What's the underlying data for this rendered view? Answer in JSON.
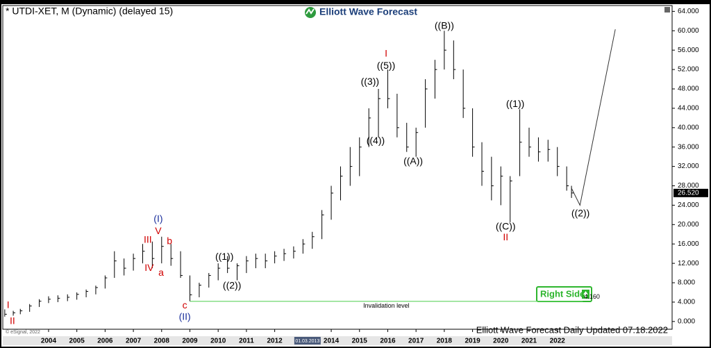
{
  "chart_data": {
    "type": "ohlc",
    "title": "* UTDI-XET, M (Dynamic) (delayed 15)",
    "logo": "Elliott Wave Forecast",
    "footer": "Elliott Wave Forecast Daily Updated 07.18.2022",
    "copyright": "© eSignal, 2022",
    "badge": "Right Side",
    "color": "#000000",
    "xlim": [
      2002.38,
      2026.06
    ],
    "xticks": [
      2004,
      2005,
      2006,
      2007,
      2008,
      2009,
      2010,
      2011,
      2012,
      2014,
      2015,
      2016,
      2017,
      2018,
      2019,
      2020,
      2021,
      2022
    ],
    "cursor_label": {
      "value": 2013.16,
      "label": "01.03.2013"
    },
    "ylim": [
      -1.6,
      65.2
    ],
    "yticks": [
      {
        "value": 0,
        "label": "0.000"
      },
      {
        "value": 4,
        "label": "4.000"
      },
      {
        "value": 8,
        "label": "8.000"
      },
      {
        "value": 12,
        "label": "12.000"
      },
      {
        "value": 16,
        "label": "16.000"
      },
      {
        "value": 20,
        "label": "20.000"
      },
      {
        "value": 24,
        "label": "24.000"
      },
      {
        "value": 28,
        "label": "28.000"
      },
      {
        "value": 32,
        "label": "32.000"
      },
      {
        "value": 36,
        "label": "36.000"
      },
      {
        "value": 40,
        "label": "40.000"
      },
      {
        "value": 44,
        "label": "44.000"
      },
      {
        "value": 48,
        "label": "48.000"
      },
      {
        "value": 52,
        "label": "52.000"
      },
      {
        "value": 56,
        "label": "56.000"
      },
      {
        "value": 60,
        "label": "60.000"
      },
      {
        "value": 64,
        "label": "64.000"
      }
    ],
    "x": [
      2002.45,
      2002.75,
      2003.0,
      2003.33,
      2003.67,
      2004.0,
      2004.33,
      2004.67,
      2005.0,
      2005.33,
      2005.67,
      2006.0,
      2006.33,
      2006.67,
      2007.0,
      2007.33,
      2007.67,
      2008.0,
      2008.33,
      2008.67,
      2009.0,
      2009.33,
      2009.67,
      2010.0,
      2010.33,
      2010.67,
      2011.0,
      2011.33,
      2011.67,
      2012.0,
      2012.33,
      2012.67,
      2013.0,
      2013.33,
      2013.67,
      2014.0,
      2014.33,
      2014.67,
      2015.0,
      2015.33,
      2015.67,
      2016.0,
      2016.33,
      2016.67,
      2017.0,
      2017.33,
      2017.67,
      2018.0,
      2018.33,
      2018.67,
      2019.0,
      2019.33,
      2019.67,
      2020.0,
      2020.33,
      2020.67,
      2021.0,
      2021.33,
      2021.67,
      2022.0,
      2022.33,
      2022.5
    ],
    "low": [
      1.0,
      1.2,
      1.5,
      2.0,
      3.0,
      3.8,
      4.0,
      4.2,
      4.5,
      5.0,
      5.6,
      6.8,
      9.0,
      9.5,
      10.5,
      12.0,
      11.0,
      12.0,
      11.5,
      9.0,
      4.2,
      5.0,
      7.0,
      8.5,
      10.0,
      8.5,
      10.0,
      11.0,
      11.0,
      12.0,
      12.5,
      13.0,
      14.0,
      15.0,
      17.0,
      21.0,
      25.0,
      28.0,
      30.0,
      36.0,
      38.0,
      44.0,
      38.0,
      35.0,
      34.0,
      40.0,
      46.0,
      52.0,
      50.0,
      42.0,
      34.0,
      28.0,
      25.0,
      24.0,
      20.5,
      30.0,
      34.0,
      33.0,
      33.0,
      30.0,
      27.0,
      25.5
    ],
    "high": [
      2.5,
      2.2,
      2.6,
      3.6,
      4.6,
      5.2,
      5.4,
      5.6,
      6.0,
      6.6,
      7.4,
      9.5,
      14.5,
      13.0,
      14.0,
      16.0,
      16.5,
      17.5,
      16.0,
      14.5,
      9.5,
      8.0,
      10.0,
      12.0,
      13.5,
      12.0,
      13.5,
      14.0,
      14.0,
      14.5,
      15.0,
      15.5,
      17.0,
      18.5,
      23.0,
      28.0,
      32.0,
      36.0,
      38.0,
      44.0,
      48.0,
      52.0,
      47.0,
      41.0,
      40.0,
      50.0,
      54.0,
      60.0,
      58.0,
      52.0,
      44.0,
      37.0,
      34.0,
      32.0,
      30.0,
      43.8,
      40.0,
      38.0,
      37.5,
      36.0,
      32.0,
      28.0
    ],
    "close": [
      1.5,
      1.8,
      2.2,
      3.2,
      4.2,
      4.6,
      4.8,
      5.0,
      5.6,
      6.2,
      7.0,
      9.0,
      12.5,
      11.0,
      13.0,
      14.5,
      13.0,
      15.5,
      13.0,
      9.5,
      5.5,
      7.5,
      9.5,
      11.0,
      11.0,
      11.5,
      12.5,
      13.0,
      12.5,
      13.5,
      14.0,
      14.5,
      16.0,
      17.5,
      22.0,
      26.5,
      30.0,
      32.0,
      36.0,
      42.0,
      46.0,
      46.0,
      40.0,
      36.0,
      39.0,
      48.0,
      52.0,
      56.0,
      52.0,
      44.0,
      36.0,
      31.0,
      28.0,
      30.0,
      29.0,
      37.0,
      36.0,
      35.0,
      35.5,
      32.0,
      28.0,
      26.52
    ],
    "last_price": {
      "value": 26.52,
      "label": "26.520"
    },
    "projection": {
      "x": [
        2022.5,
        2022.8,
        2024.05
      ],
      "values": [
        27.5,
        24.0,
        60.3
      ],
      "color": "#333333"
    },
    "invalidation": {
      "value": 4.16,
      "label": "4.160",
      "text": "Invalidation level",
      "start": 2009.0,
      "end": 2022.9,
      "color": "#5fd35f"
    },
    "annotations": [
      {
        "text": "I",
        "x": 2002.57,
        "y": 3.3,
        "color": "#d00000"
      },
      {
        "text": "II",
        "x": 2002.72,
        "y": 0.0,
        "color": "#d00000"
      },
      {
        "text": "(I)",
        "x": 2007.88,
        "y": 21.1,
        "color": "#1a2f9c"
      },
      {
        "text": "V",
        "x": 2007.88,
        "y": 18.6,
        "color": "#d00000"
      },
      {
        "text": "III",
        "x": 2007.51,
        "y": 16.8,
        "color": "#d00000"
      },
      {
        "text": "b",
        "x": 2008.28,
        "y": 16.5,
        "color": "#d00000"
      },
      {
        "text": "IV",
        "x": 2007.56,
        "y": 11.0,
        "color": "#d00000"
      },
      {
        "text": "a",
        "x": 2007.98,
        "y": 10.0,
        "color": "#d00000"
      },
      {
        "text": "c",
        "x": 2008.82,
        "y": 3.2,
        "color": "#d00000"
      },
      {
        "text": "(II)",
        "x": 2008.82,
        "y": 0.9,
        "color": "#1a2f9c"
      },
      {
        "text": "((1))",
        "x": 2010.22,
        "y": 13.3,
        "color": "#000000"
      },
      {
        "text": "((2))",
        "x": 2010.49,
        "y": 7.3,
        "color": "#000000"
      },
      {
        "text": "I",
        "x": 2015.94,
        "y": 55.2,
        "color": "#d00000"
      },
      {
        "text": "((5))",
        "x": 2015.94,
        "y": 52.7,
        "color": "#000000"
      },
      {
        "text": "((3))",
        "x": 2015.37,
        "y": 49.4,
        "color": "#000000"
      },
      {
        "text": "((4))",
        "x": 2015.57,
        "y": 37.2,
        "color": "#000000"
      },
      {
        "text": "((A))",
        "x": 2016.9,
        "y": 33.0,
        "color": "#000000"
      },
      {
        "text": "((B))",
        "x": 2018.0,
        "y": 60.9,
        "color": "#000000"
      },
      {
        "text": "((1))",
        "x": 2020.51,
        "y": 44.8,
        "color": "#000000"
      },
      {
        "text": "((C))",
        "x": 2020.17,
        "y": 19.5,
        "color": "#000000"
      },
      {
        "text": "II",
        "x": 2020.17,
        "y": 17.3,
        "color": "#d00000"
      },
      {
        "text": "((2))",
        "x": 2022.82,
        "y": 22.2,
        "color": "#000000"
      }
    ]
  }
}
